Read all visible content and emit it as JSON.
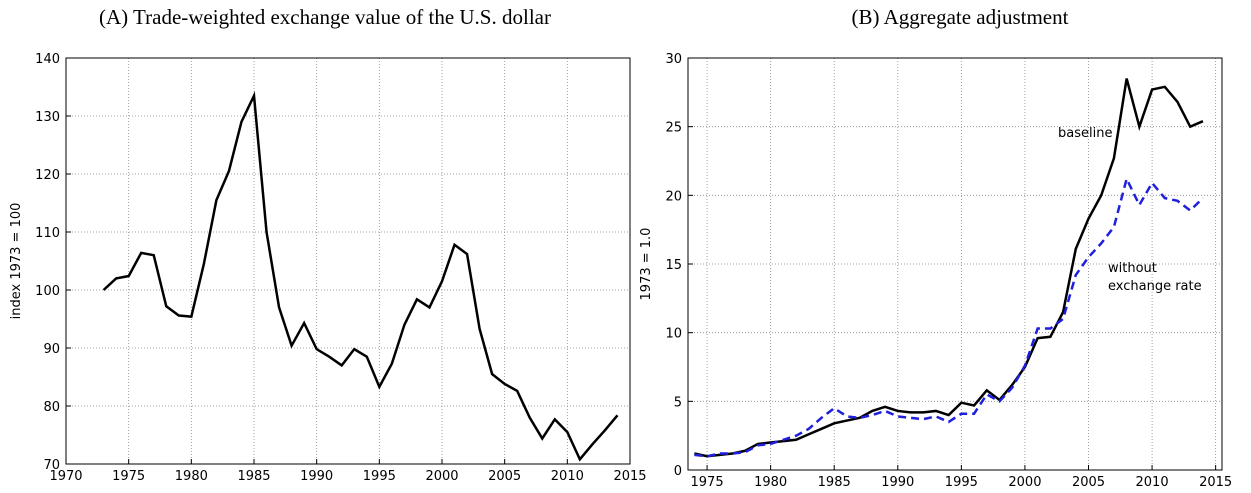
{
  "chart_data": [
    {
      "type": "line",
      "title": "(A) Trade-weighted exchange value of the U.S. dollar",
      "y_label": "index 1973 = 100",
      "x": [
        1973,
        1974,
        1975,
        1976,
        1977,
        1978,
        1979,
        1980,
        1981,
        1982,
        1983,
        1984,
        1985,
        1986,
        1987,
        1988,
        1989,
        1990,
        1991,
        1992,
        1993,
        1994,
        1995,
        1996,
        1997,
        1998,
        1999,
        2000,
        2001,
        2002,
        2003,
        2004,
        2005,
        2006,
        2007,
        2008,
        2009,
        2010,
        2011,
        2012,
        2013,
        2014
      ],
      "series": [
        {
          "color": "#000000",
          "dash": "solid",
          "values": [
            100,
            102,
            102.4,
            106.4,
            106,
            97.2,
            95.6,
            95.4,
            104.5,
            115.5,
            120.5,
            129,
            133.5,
            110,
            97,
            90.4,
            94.3,
            89.8,
            88.5,
            87,
            89.8,
            88.5,
            83.3,
            87.3,
            94,
            98.4,
            97,
            101.5,
            107.8,
            106.2,
            93.3,
            85.5,
            83.8,
            82.6,
            78,
            74.4,
            77.7,
            75.5,
            70.8,
            73.4,
            75.8,
            78.4
          ]
        }
      ],
      "xlim": [
        1970,
        2015
      ],
      "xticks": [
        1970,
        1975,
        1980,
        1985,
        1990,
        1995,
        2000,
        2005,
        2010,
        2015
      ],
      "ylim": [
        70,
        140
      ],
      "yticks": [
        70,
        80,
        90,
        100,
        110,
        120,
        130,
        140
      ],
      "grid": true
    },
    {
      "type": "line",
      "title": "(B) Aggregate adjustment",
      "y_label": "1973 = 1.0",
      "x": [
        1974,
        1975,
        1976,
        1977,
        1978,
        1979,
        1980,
        1981,
        1982,
        1983,
        1984,
        1985,
        1986,
        1987,
        1988,
        1989,
        1990,
        1991,
        1992,
        1993,
        1994,
        1995,
        1996,
        1997,
        1998,
        1999,
        2000,
        2001,
        2002,
        2003,
        2004,
        2005,
        2006,
        2007,
        2008,
        2009,
        2010,
        2011,
        2012,
        2013,
        2014
      ],
      "series": [
        {
          "color": "#000000",
          "dash": "solid",
          "values": [
            1.2,
            1.0,
            1.1,
            1.2,
            1.4,
            1.9,
            2.0,
            2.1,
            2.2,
            2.6,
            3.0,
            3.4,
            3.6,
            3.8,
            4.3,
            4.6,
            4.3,
            4.2,
            4.2,
            4.3,
            4.0,
            4.9,
            4.7,
            5.8,
            5.1,
            6.2,
            7.5,
            9.6,
            9.7,
            11.5,
            16.1,
            18.3,
            20.0,
            22.7,
            28.5,
            25.0,
            27.7,
            27.9,
            26.8,
            25.0,
            25.4
          ]
        },
        {
          "color": "#1f1fdd",
          "dash": "dashed",
          "values": [
            1.1,
            1.0,
            1.2,
            1.2,
            1.3,
            1.8,
            1.9,
            2.2,
            2.5,
            3.0,
            3.8,
            4.5,
            3.9,
            3.8,
            4.0,
            4.3,
            3.9,
            3.8,
            3.7,
            3.9,
            3.5,
            4.1,
            4.1,
            5.5,
            5.0,
            6.0,
            7.6,
            10.3,
            10.3,
            11.0,
            14.2,
            15.5,
            16.5,
            17.7,
            21.2,
            19.3,
            20.9,
            19.8,
            19.6,
            18.9,
            19.8
          ]
        }
      ],
      "annotations": [
        "baseline",
        "without",
        "exchange rate"
      ],
      "xlim": [
        1973.5,
        2015.5
      ],
      "xticks": [
        1975,
        1980,
        1985,
        1990,
        1995,
        2000,
        2005,
        2010,
        2015
      ],
      "ylim": [
        0,
        30
      ],
      "yticks": [
        0,
        5,
        10,
        15,
        20,
        25,
        30
      ],
      "grid": true
    }
  ]
}
